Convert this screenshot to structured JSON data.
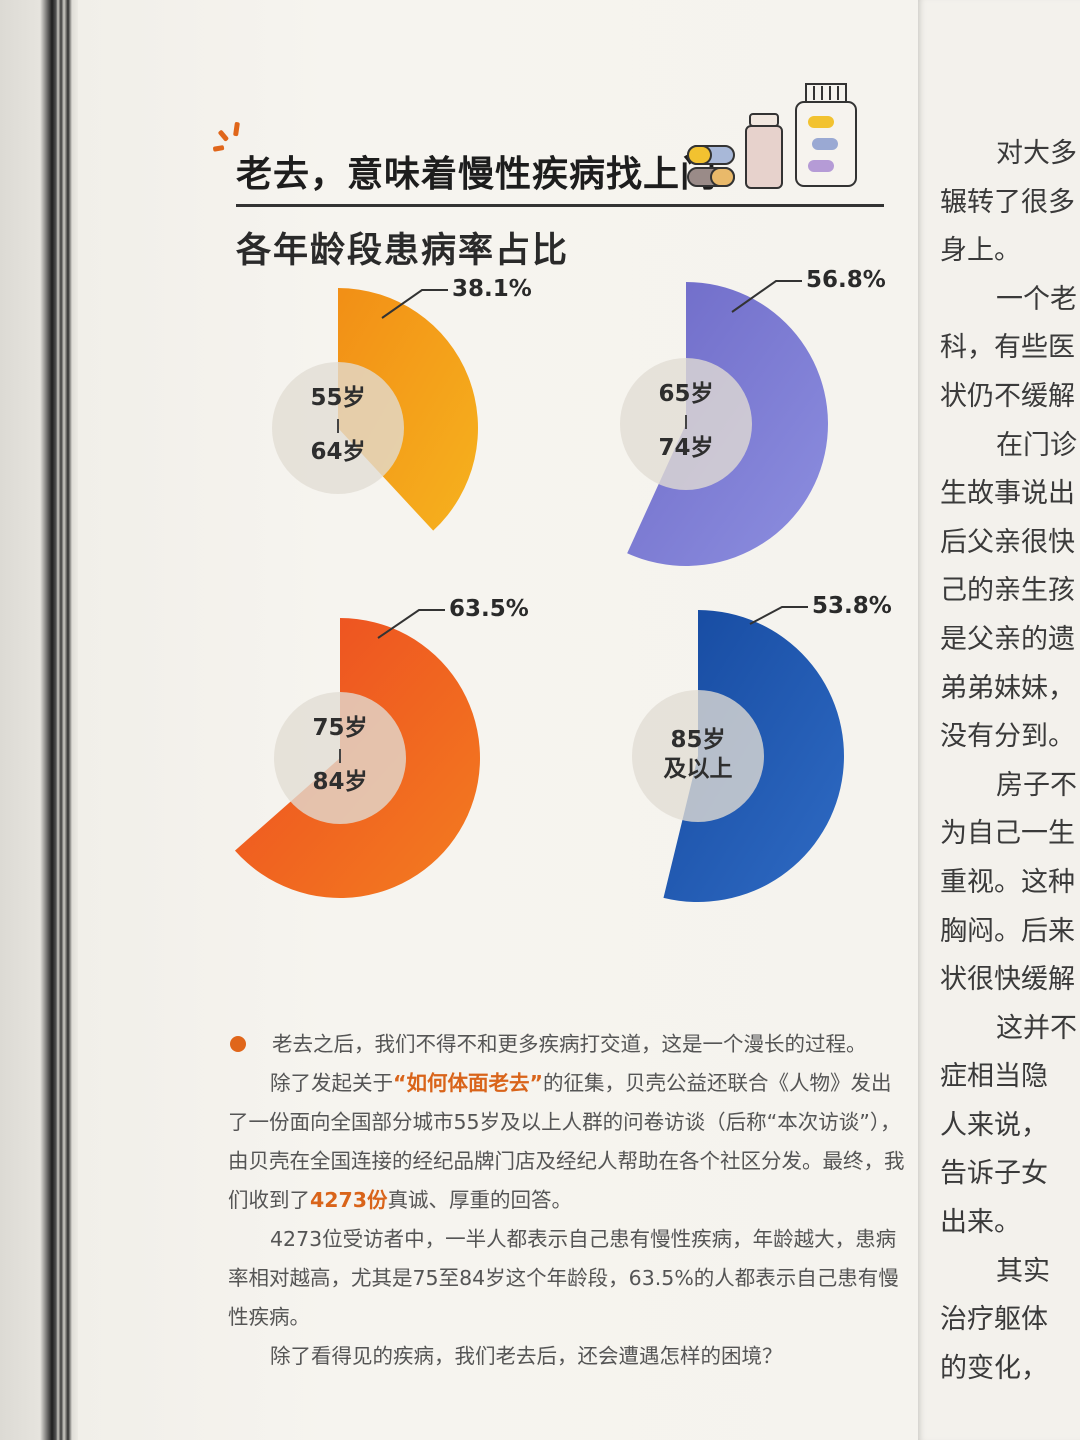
{
  "section_heading": "老去，意味着慢性疾病找上门",
  "chart_data": {
    "type": "pie",
    "title": "各年龄段患病率占比",
    "unit": "%",
    "categories": [
      {
        "age_top": "55岁",
        "age_bottom": "64岁",
        "value": 38.1,
        "label": "38.1%",
        "color_from": "#f28f16",
        "color_to": "#f6b21e"
      },
      {
        "age_top": "65岁",
        "age_bottom": "74岁",
        "value": 56.8,
        "label": "56.8%",
        "color_from": "#6e6ac7",
        "color_to": "#8d8fe0"
      },
      {
        "age_top": "75岁",
        "age_bottom": "84岁",
        "value": 63.5,
        "label": "63.5%",
        "color_from": "#ec4a22",
        "color_to": "#f47d1f"
      },
      {
        "age_top": "85岁",
        "age_bottom": "及以上",
        "value": 53.8,
        "label": "53.8%",
        "color_from": "#164aa0",
        "color_to": "#2f6bc4"
      }
    ]
  },
  "body": {
    "p1": "老去之后，我们不得不和更多疾病打交道，这是一个漫长的过程。",
    "p2_a": "除了发起关于",
    "p2_hl": "“如何体面老去”",
    "p2_b": "的征集，贝壳公益还联合《人物》发出了一份面向全国部分城市55岁及以上人群的问卷访谈（后称“本次访谈”），由贝壳在全国连接的经纪品牌门店及经纪人帮助在各个社区分发。最终，我们收到了",
    "p2_hl2": "4273份",
    "p2_c": "真诚、厚重的回答。",
    "p3": "4273位受访者中，一半人都表示自己患有慢性疾病，年龄越大，患病率相对越高，尤其是75至84岁这个年龄段，63.5%的人都表示自己患有慢性疾病。",
    "p4": "除了看得见的疾病，我们老去后，还会遭遇怎样的困境？"
  },
  "right_page_lines": [
    "对大多",
    "辗转了很多",
    "身上。",
    "一个老",
    "科，有些医",
    "状仍不缓解",
    "在门诊",
    "生故事说出",
    "后父亲很快",
    "己的亲生孩",
    "是父亲的遗",
    "弟弟妹妹，",
    "没有分到。",
    "房子不",
    "为自己一生",
    "重视。这种",
    "胸闷。后来",
    "状很快缓解",
    "这并不",
    "症相当隐",
    "人来说，",
    "告诉子女",
    "出来。",
    "其实",
    "治疗躯体",
    "的变化，"
  ]
}
